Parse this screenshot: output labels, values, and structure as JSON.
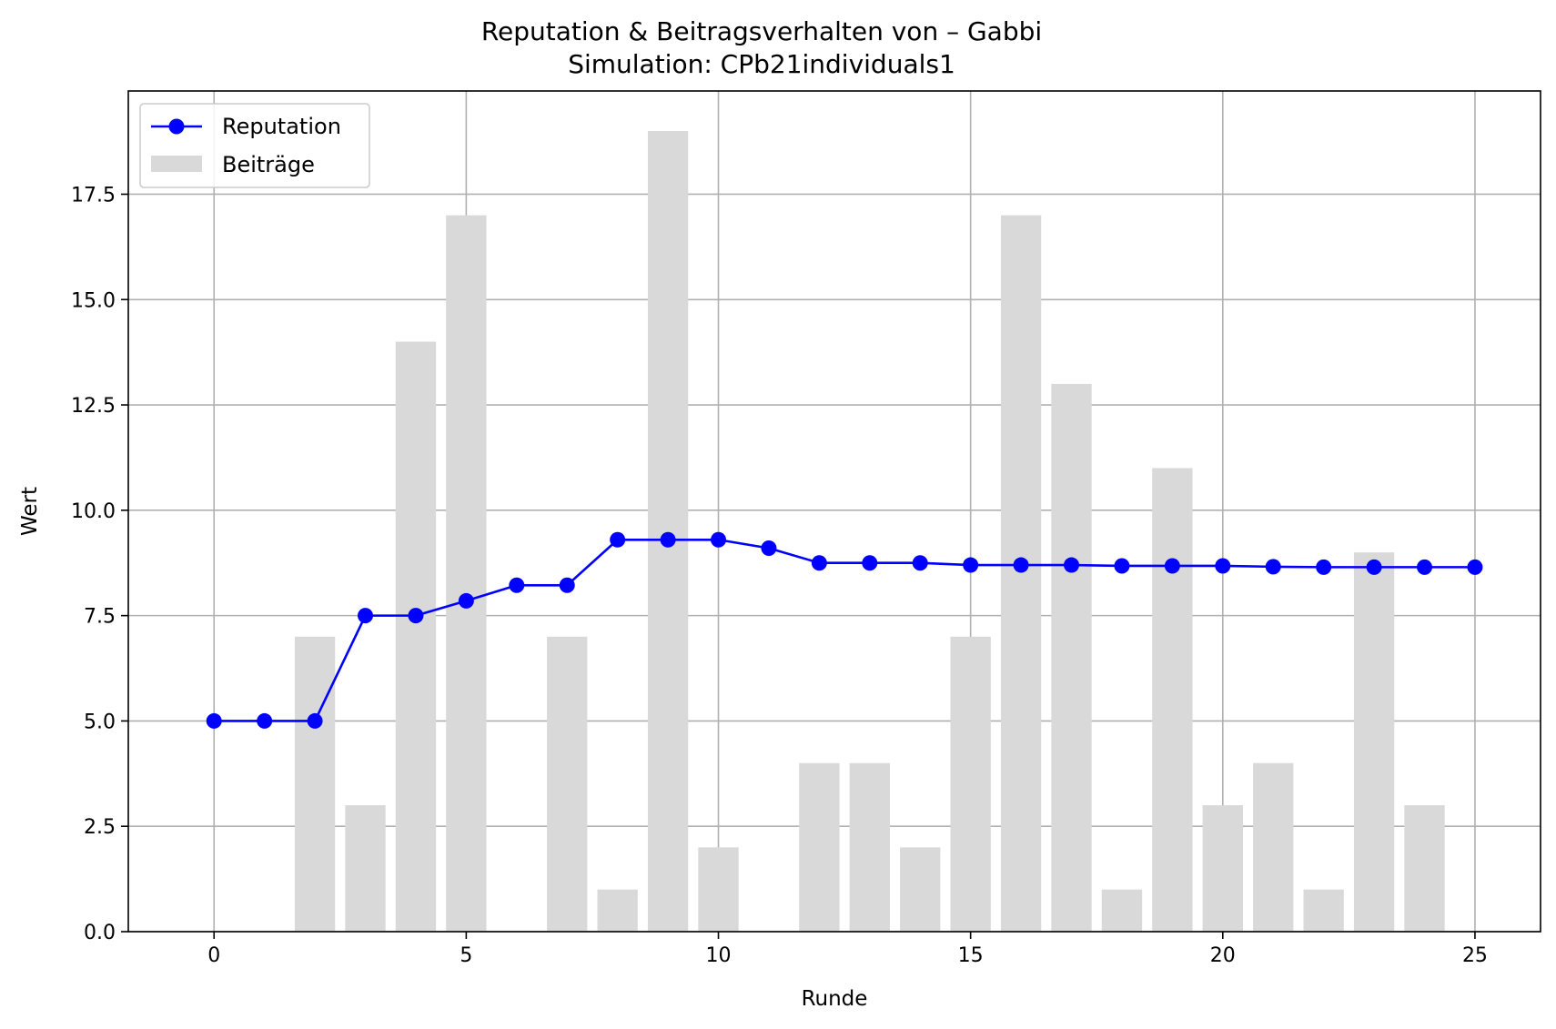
{
  "chart_data": {
    "type": "bar+line",
    "title": "Reputation & Beitragsverhalten von – Gabbi",
    "subtitle": "Simulation: CPb21individuals1",
    "xlabel": "Runde",
    "ylabel": "Wert",
    "xlim": [
      -1.7,
      26.3
    ],
    "ylim": [
      0,
      19.95
    ],
    "xticks": [
      0,
      5,
      10,
      15,
      20,
      25
    ],
    "yticks": [
      0.0,
      2.5,
      5.0,
      7.5,
      10.0,
      12.5,
      15.0,
      17.5
    ],
    "ytick_labels": [
      "0.0",
      "2.5",
      "5.0",
      "7.5",
      "10.0",
      "12.5",
      "15.0",
      "17.5"
    ],
    "grid": true,
    "legend_position": "top-left",
    "x": [
      0,
      1,
      2,
      3,
      4,
      5,
      6,
      7,
      8,
      9,
      10,
      11,
      12,
      13,
      14,
      15,
      16,
      17,
      18,
      19,
      20,
      21,
      22,
      23,
      24,
      25
    ],
    "series": [
      {
        "name": "Reputation",
        "kind": "line",
        "color": "#0000ff",
        "values": [
          5.0,
          5.0,
          5.0,
          7.5,
          7.5,
          7.85,
          8.22,
          8.22,
          9.3,
          9.3,
          9.3,
          9.1,
          8.75,
          8.75,
          8.75,
          8.7,
          8.7,
          8.7,
          8.68,
          8.68,
          8.68,
          8.66,
          8.65,
          8.65,
          8.65,
          8.65
        ]
      },
      {
        "name": "Beiträge",
        "kind": "bar",
        "color": "#d9d9d9",
        "values": [
          0,
          0,
          7,
          3,
          14,
          17,
          0,
          7,
          1,
          19,
          2,
          0,
          4,
          4,
          2,
          7,
          17,
          13,
          1,
          11,
          3,
          4,
          1,
          9,
          3,
          0
        ]
      }
    ]
  }
}
